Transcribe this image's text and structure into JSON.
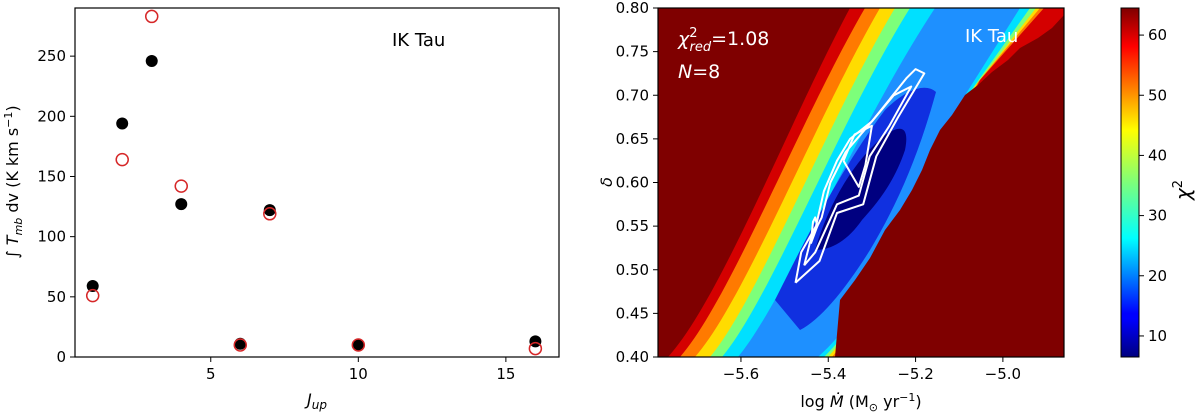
{
  "chart_data": [
    {
      "type": "scatter",
      "title": "",
      "annotation": "IK Tau",
      "xlabel_main": "J",
      "xlabel_sub": "up",
      "ylabel_parts": [
        "∫ ",
        "T",
        "mb",
        " dv (K km s",
        "−1",
        ")"
      ],
      "xlim": [
        0.4,
        16.8
      ],
      "ylim": [
        0,
        290
      ],
      "xticks": [
        5,
        10,
        15
      ],
      "yticks": [
        0,
        50,
        100,
        150,
        200,
        250
      ],
      "series": [
        {
          "marker": "filled",
          "color": "#000000",
          "x": [
            1,
            2,
            3,
            4,
            6,
            7,
            10,
            16
          ],
          "y": [
            59,
            194,
            246,
            127,
            11,
            122,
            10,
            13
          ]
        },
        {
          "marker": "open",
          "color": "#d62728",
          "x": [
            1,
            2,
            3,
            4,
            6,
            7,
            10,
            16
          ],
          "y": [
            51,
            164,
            283,
            142,
            10,
            119,
            10,
            7
          ]
        }
      ]
    },
    {
      "type": "heatmap",
      "title": "",
      "annotation": "IK Tau",
      "stat_chi": "χ",
      "stat_sup": "2",
      "stat_sub": "red",
      "stat_value": "=1.08",
      "stat_n": "N",
      "stat_n_value": "=8",
      "xlabel": "log Ṁ (M⊙ yr−1)",
      "xlabel_parts": [
        "log ",
        "Ṁ",
        " (M",
        "⊙",
        " yr",
        "−1",
        ")"
      ],
      "ylabel": "δ",
      "xlim": [
        -5.79,
        -4.86
      ],
      "ylim": [
        0.4,
        0.8
      ],
      "xticks": [
        -5.6,
        -5.4,
        -5.2,
        -5.0
      ],
      "xtick_labels": [
        "−5.6",
        "−5.4",
        "−5.2",
        "−5.0"
      ],
      "yticks": [
        0.4,
        0.45,
        0.5,
        0.55,
        0.6,
        0.65,
        0.7,
        0.75,
        0.8
      ],
      "ytick_labels": [
        "0.40",
        "0.45",
        "0.50",
        "0.55",
        "0.60",
        "0.65",
        "0.70",
        "0.75",
        "0.80"
      ],
      "colorbar": {
        "label": "χ",
        "label_sup": "2",
        "range": [
          6.5,
          64.5
        ],
        "ticks": [
          10,
          20,
          30,
          40,
          50,
          60
        ],
        "colormap": "jet"
      },
      "contours": [
        [
          [
            -5.475,
            0.485
          ],
          [
            -5.462,
            0.52
          ],
          [
            -5.428,
            0.55
          ],
          [
            -5.41,
            0.59
          ],
          [
            -5.38,
            0.625
          ],
          [
            -5.35,
            0.65
          ],
          [
            -5.3,
            0.67
          ],
          [
            -5.22,
            0.72
          ],
          [
            -5.2,
            0.73
          ],
          [
            -5.18,
            0.725
          ],
          [
            -5.24,
            0.675
          ],
          [
            -5.29,
            0.63
          ],
          [
            -5.32,
            0.575
          ],
          [
            -5.38,
            0.565
          ],
          [
            -5.42,
            0.51
          ],
          [
            -5.475,
            0.485
          ]
        ],
        [
          [
            -5.455,
            0.505
          ],
          [
            -5.44,
            0.535
          ],
          [
            -5.415,
            0.56
          ],
          [
            -5.395,
            0.6
          ],
          [
            -5.36,
            0.635
          ],
          [
            -5.3,
            0.67
          ],
          [
            -5.25,
            0.7
          ],
          [
            -5.21,
            0.71
          ],
          [
            -5.26,
            0.665
          ],
          [
            -5.305,
            0.63
          ],
          [
            -5.33,
            0.585
          ],
          [
            -5.38,
            0.575
          ],
          [
            -5.43,
            0.52
          ],
          [
            -5.455,
            0.505
          ]
        ],
        [
          [
            -5.44,
            0.53
          ],
          [
            -5.435,
            0.555
          ],
          [
            -5.43,
            0.56
          ],
          [
            -5.425,
            0.55
          ],
          [
            -5.44,
            0.53
          ]
        ],
        [
          [
            -5.365,
            0.625
          ],
          [
            -5.34,
            0.655
          ],
          [
            -5.3,
            0.665
          ],
          [
            -5.315,
            0.62
          ],
          [
            -5.33,
            0.595
          ],
          [
            -5.365,
            0.625
          ]
        ]
      ]
    }
  ]
}
